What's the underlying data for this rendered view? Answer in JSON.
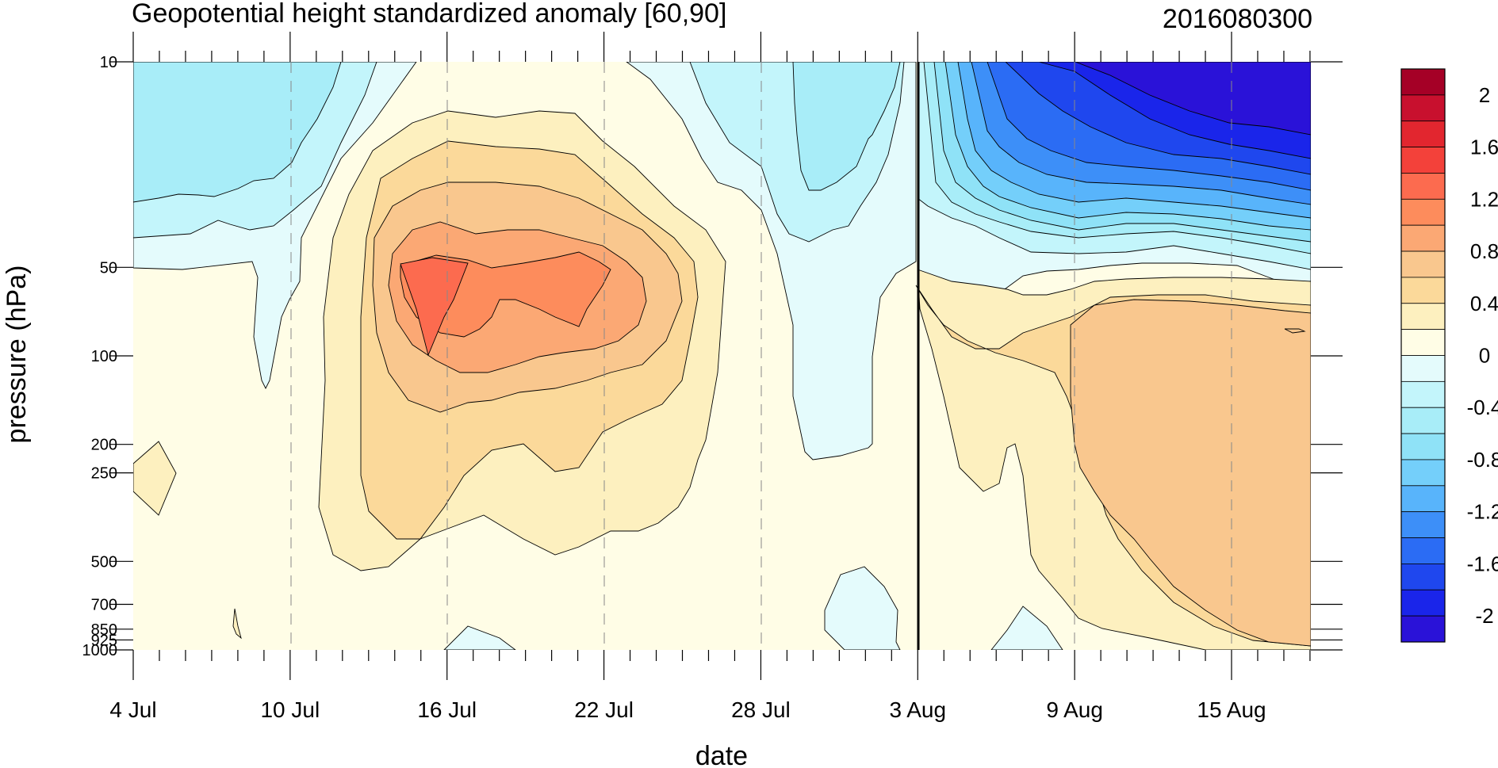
{
  "chart_data": {
    "type": "heatmap",
    "title": "Geopotential height standardized anomaly [60,90]",
    "date_label": "2016080300",
    "xlabel": "date",
    "ylabel": "pressure (hPa)",
    "x_tick_labels": [
      "4 Jul",
      "10 Jul",
      "16 Jul",
      "22 Jul",
      "28 Jul",
      "3 Aug",
      "9 Aug",
      "15 Aug"
    ],
    "y_tick_labels": [
      "10",
      "50",
      "100",
      "200",
      "250",
      "500",
      "700",
      "850",
      "925",
      "1000"
    ],
    "y_tick_values": [
      10,
      50,
      100,
      200,
      250,
      500,
      700,
      850,
      925,
      1000
    ],
    "y_scale": "log",
    "contour_levels": [
      -2.2,
      -2.0,
      -1.8,
      -1.6,
      -1.4,
      -1.2,
      -1.0,
      -0.8,
      -0.6,
      -0.4,
      -0.2,
      0,
      0.2,
      0.4,
      0.6,
      0.8,
      1.0,
      1.2,
      1.4,
      1.6,
      1.8,
      2.0,
      2.2
    ],
    "colorbar_labels": [
      "2",
      "1.6",
      "1.2",
      "0.8",
      "0.4",
      "0",
      "-0.4",
      "-0.8",
      "-1.2",
      "-1.6",
      "-2"
    ],
    "colorbar_colors": [
      "#a50026",
      "#c8102e",
      "#e2262f",
      "#f3413a",
      "#fc6b4f",
      "#fd8c5c",
      "#fba874",
      "#f9c78e",
      "#fbd99a",
      "#fdf0bf",
      "#fffde6",
      "#e4fbfc",
      "#c3f5fb",
      "#a8edf8",
      "#8fe2f7",
      "#74cffa",
      "#58b4fb",
      "#3d8ff8",
      "#2b6cf4",
      "#1f47ee",
      "#1a25ea",
      "#2a12d8"
    ],
    "colorbar_note": "levels drawn top (highest) to bottom (lowest)",
    "forecast_start": "3 Aug",
    "regions": [
      {
        "name": "upper-left-negative",
        "value": -0.6
      },
      {
        "name": "mid-july-positive-core",
        "value": 1.2
      },
      {
        "name": "late-july-negative",
        "value": -0.6
      },
      {
        "name": "august-strong-negative",
        "value": -2.2
      },
      {
        "name": "august-lower-positive",
        "value": 0.6
      }
    ]
  }
}
